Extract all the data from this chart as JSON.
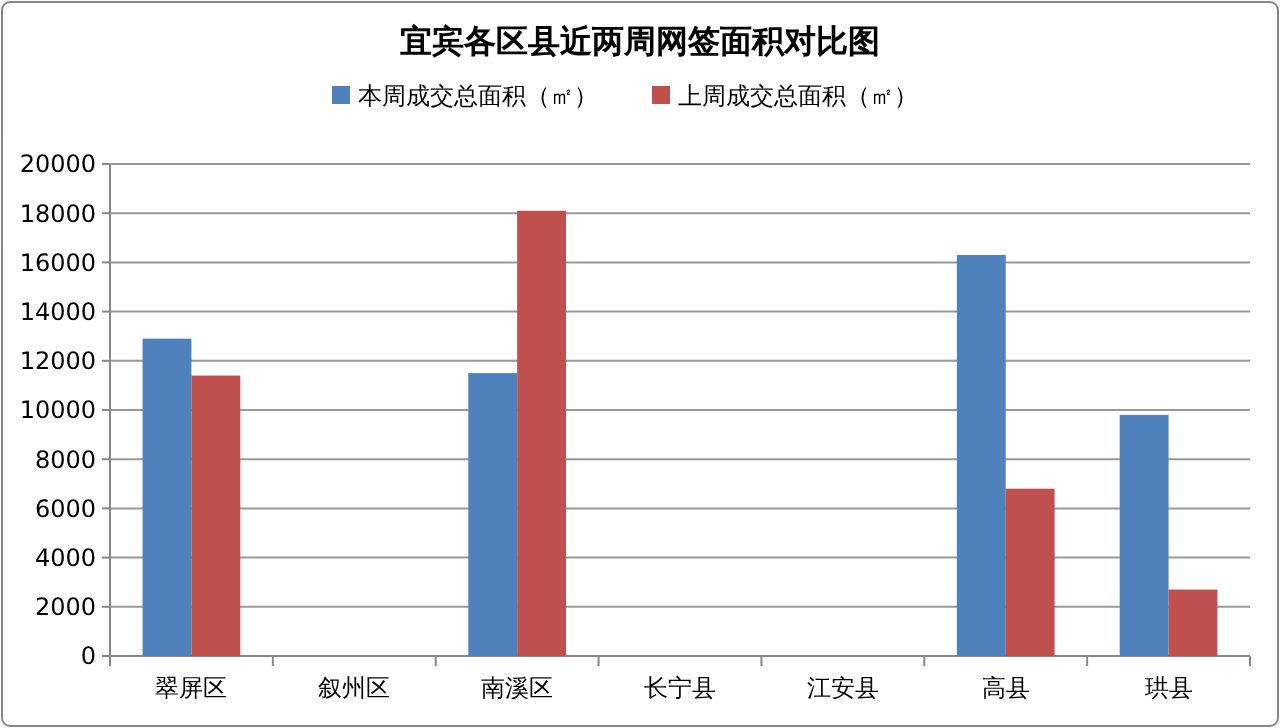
{
  "chart_data": {
    "type": "bar",
    "title": "宜宾各区县近两周网签面积对比图",
    "categories": [
      "翠屏区",
      "叙州区",
      "南溪区",
      "长宁县",
      "江安县",
      "高县",
      "珙县"
    ],
    "series": [
      {
        "name": "本周成交总面积（㎡）",
        "color": "#4f81bd",
        "values": [
          12900,
          null,
          11500,
          null,
          null,
          16300,
          9800
        ]
      },
      {
        "name": "上周成交总面积（㎡）",
        "color": "#c0504d",
        "values": [
          11400,
          null,
          18100,
          null,
          null,
          6800,
          2700
        ]
      }
    ],
    "ylim": [
      0,
      20000
    ],
    "yticks": [
      0,
      2000,
      4000,
      6000,
      8000,
      10000,
      12000,
      14000,
      16000,
      18000,
      20000
    ],
    "grid": "y",
    "legend": "top"
  }
}
